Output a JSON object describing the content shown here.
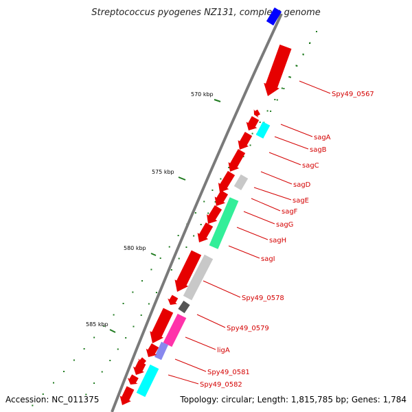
{
  "title": "Streptococcus pyogenes NZ131, complete genome",
  "footer": {
    "accession": "Accession: NC_011375",
    "summary": "Topology: circular; Length: 1,815,785 bp; Genes: 1,784"
  },
  "colors": {
    "backbone": "#7a7a7a",
    "tick": "#1e7a1e",
    "label": "#d40000",
    "gene_red": "#e60000",
    "gene_cyan": "#00ffff",
    "gene_gray": "#c8c8c8",
    "gene_green": "#33ee99",
    "gene_magenta": "#ff33aa",
    "gene_blue": "#0000ff",
    "gene_darkgray": "#555555",
    "gene_lavender": "#8888ee"
  },
  "kbp_labels": [
    "570 kbp",
    "575 kbp",
    "580 kbp",
    "585 kbp"
  ],
  "gene_labels": [
    "Spy49_0567",
    "sagA",
    "sagB",
    "sagC",
    "sagD",
    "sagE",
    "sagF",
    "sagG",
    "sagH",
    "sagI",
    "Spy49_0578",
    "Spy49_0579",
    "ligA",
    "Spy49_0581",
    "Spy49_0582"
  ]
}
